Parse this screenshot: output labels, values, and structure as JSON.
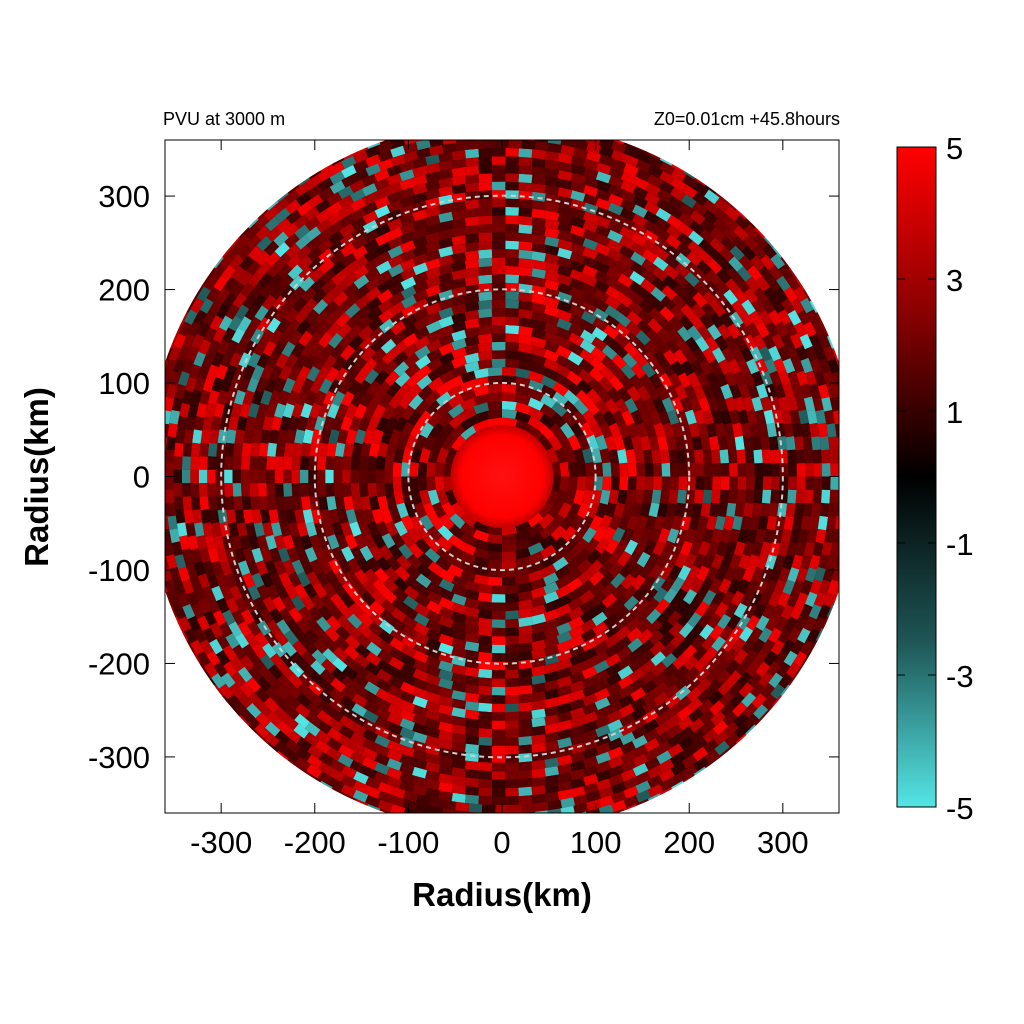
{
  "chart_data": {
    "type": "heatmap",
    "title_left": "PVU at  3000 m",
    "title_right": "Z0=0.01cm  +45.8hours",
    "xlabel": "Radius(km)",
    "ylabel": "Radius(km)",
    "xlim": [
      -360,
      360
    ],
    "ylim": [
      -360,
      360
    ],
    "xticks": [
      -300,
      -200,
      -100,
      0,
      100,
      200,
      300
    ],
    "yticks": [
      300,
      200,
      100,
      0,
      -100,
      -200,
      -300
    ],
    "xtick_labels": [
      "-300",
      "-200",
      "-100",
      "0",
      "100",
      "200",
      "300"
    ],
    "ytick_labels": [
      "300",
      "200",
      "100",
      "0",
      "-100",
      "-200",
      "-300"
    ],
    "domain_radius": 380,
    "reference_circles_km": [
      100,
      200,
      300
    ],
    "colorbar": {
      "min": -5,
      "max": 5,
      "ticks": [
        5,
        3,
        1,
        -1,
        -3,
        -5
      ],
      "tick_labels": [
        "5",
        "3",
        "1",
        "-1",
        "-3",
        "-5"
      ],
      "colors": {
        "low": "#55e5e5",
        "zero": "#000000",
        "high": "#ff0000"
      }
    },
    "field_description_values": {
      "eye_radius_km": 55,
      "eye_value": 5,
      "background_value": 1.2
    }
  }
}
